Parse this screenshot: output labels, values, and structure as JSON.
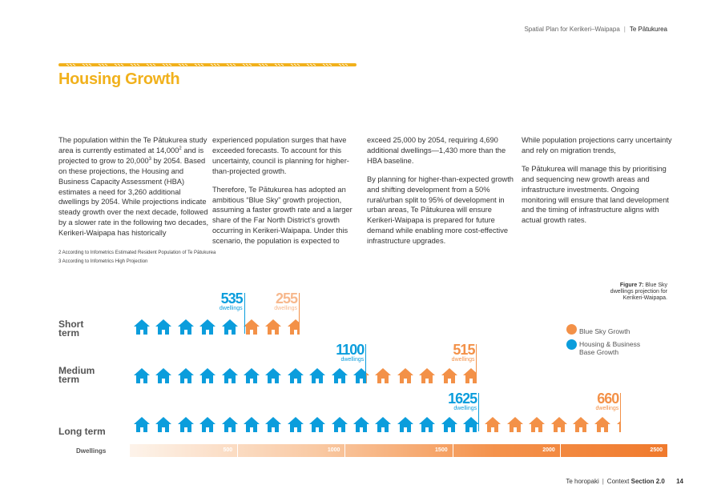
{
  "header": {
    "doc_title": "Spatial Plan for Kerikeri–Waipapa",
    "separator": "|",
    "area": "Te Pātukurea"
  },
  "title": "Housing Growth",
  "colors": {
    "accent": "#f1b11c",
    "blue": "#0b9ddc",
    "orange": "#f39148",
    "peach": "#f7b88d"
  },
  "body": {
    "col1": [
      "The population within the Te Pātukurea study area is currently estimated at 14,000",
      "2",
      " and is projected to grow to 20,000",
      "3",
      "  by 2054. Based on these projections, the Housing and Business Capacity Assessment (HBA) estimates a need for 3,260 additional dwellings by 2054. While projections indicate steady growth over the next decade, followed by a slower rate in the following two decades, Kerikeri-Waipapa has historically"
    ],
    "col2_p1": "experienced population surges that have exceeded forecasts. To account for this uncertainty, council is planning for higher-than-projected growth.",
    "col2_p2": "Therefore, Te Pātukurea has adopted an ambitious “Blue Sky” growth projection, assuming a faster growth rate and a larger share of the Far North District’s growth occurring in Kerikeri-Waipapa. Under this scenario, the population is expected to",
    "col3_p1": "exceed 25,000 by 2054, requiring 4,690 additional dwellings—1,430 more than the HBA baseline.",
    "col3_p2": "By planning for higher-than-expected growth and shifting development from a 50% rural/urban split to 95% of development in urban areas, Te Pātukurea will ensure Kerikeri-Waipapa is prepared for future demand while enabling more cost-effective infrastructure upgrades.",
    "col4_p1": "While population projections carry uncertainty and rely on migration trends,",
    "col4_p2": "Te Pātukurea will manage this by prioritising and sequencing new growth areas and infrastructure investments. Ongoing monitoring will ensure that land development and the timing of infrastructure aligns with actual growth rates."
  },
  "footnotes": [
    "2   According to Infometrics Estimated Resident Population of Te Pātukurea",
    "3   According to Infometrics High Projection"
  ],
  "figure": {
    "caption_bold": "Figure 7:",
    "caption_rest": " Blue Sky dwellings projection for Kerikeri-Waipapa.",
    "legend": [
      {
        "label": "Blue Sky Growth",
        "color": "#f39148"
      },
      {
        "label": "Housing & Business Base Growth",
        "color": "#0b9ddc"
      }
    ]
  },
  "chart_data": {
    "type": "bar",
    "categories": [
      "Short term",
      "Medium term",
      "Long term"
    ],
    "series": [
      {
        "name": "Housing & Business Base Growth",
        "values": [
          535,
          1100,
          1625
        ],
        "label": "dwellings"
      },
      {
        "name": "Blue Sky Growth",
        "values": [
          255,
          515,
          660
        ],
        "label": "dwellings"
      }
    ],
    "stacked": true,
    "xlabel": "Dwellings",
    "xlim": [
      0,
      2500
    ],
    "ticks": [
      "500",
      "1000",
      "1500",
      "2000",
      "2500"
    ],
    "tick_values": [
      500,
      1000,
      1500,
      2000,
      2500
    ]
  },
  "footer": {
    "section": "Te horopaki",
    "separator": "|",
    "context": "Context",
    "section_num": "Section 2.0",
    "page": "14"
  }
}
